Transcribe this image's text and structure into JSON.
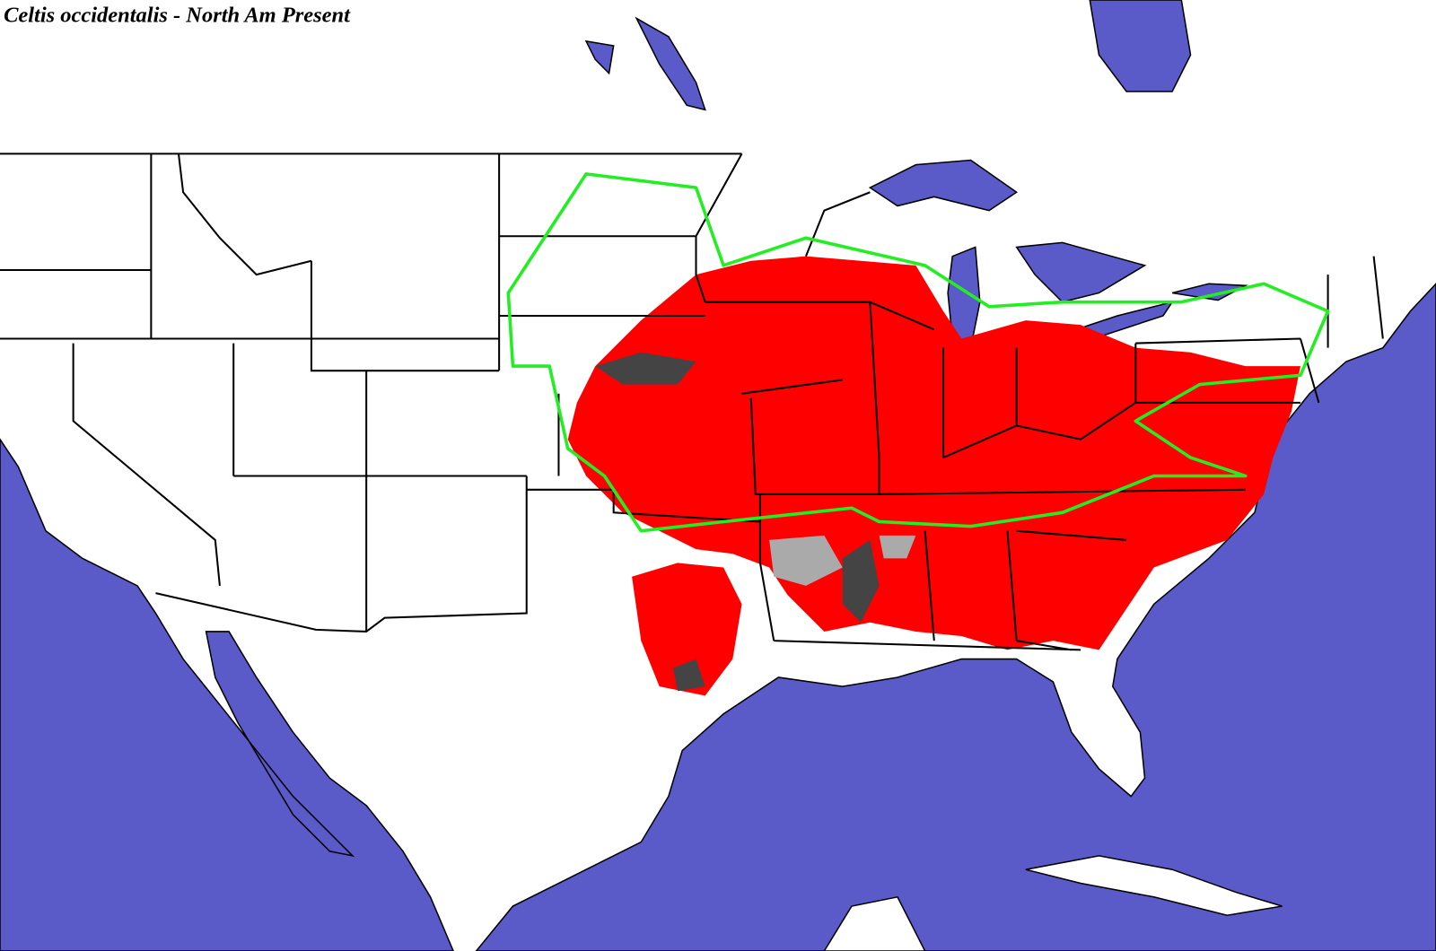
{
  "title": "Celtis occidentalis - North Am Present"
}
